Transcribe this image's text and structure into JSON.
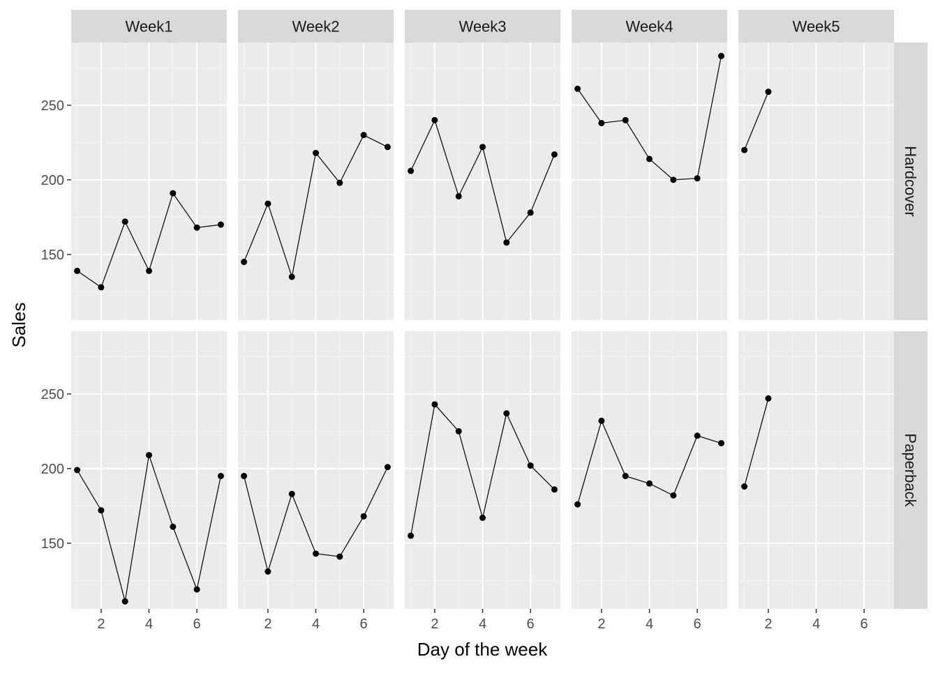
{
  "chart_data": {
    "type": "line",
    "xlabel": "Day of the week",
    "ylabel": "Sales",
    "xlim": [
      0.75,
      7.25
    ],
    "ylim": [
      106,
      292
    ],
    "x_ticks": [
      2,
      4,
      6
    ],
    "y_ticks": [
      150,
      200,
      250
    ],
    "column_facets": [
      "Week1",
      "Week2",
      "Week3",
      "Week4",
      "Week5"
    ],
    "row_facets": [
      "Hardcover",
      "Paperback"
    ],
    "panels": [
      {
        "row": "Hardcover",
        "col": "Week1",
        "x": [
          1,
          2,
          3,
          4,
          5,
          6,
          7
        ],
        "y": [
          139,
          128,
          172,
          139,
          191,
          168,
          170
        ]
      },
      {
        "row": "Hardcover",
        "col": "Week2",
        "x": [
          1,
          2,
          3,
          4,
          5,
          6,
          7
        ],
        "y": [
          145,
          184,
          135,
          218,
          198,
          230,
          222
        ]
      },
      {
        "row": "Hardcover",
        "col": "Week3",
        "x": [
          1,
          2,
          3,
          4,
          5,
          6,
          7
        ],
        "y": [
          206,
          240,
          189,
          222,
          158,
          178,
          217
        ]
      },
      {
        "row": "Hardcover",
        "col": "Week4",
        "x": [
          1,
          2,
          3,
          4,
          5,
          6,
          7
        ],
        "y": [
          261,
          238,
          240,
          214,
          200,
          201,
          283
        ]
      },
      {
        "row": "Hardcover",
        "col": "Week5",
        "x": [
          1,
          2
        ],
        "y": [
          220,
          259
        ]
      },
      {
        "row": "Paperback",
        "col": "Week1",
        "x": [
          1,
          2,
          3,
          4,
          5,
          6,
          7
        ],
        "y": [
          199,
          172,
          111,
          209,
          161,
          119,
          195
        ]
      },
      {
        "row": "Paperback",
        "col": "Week2",
        "x": [
          1,
          2,
          3,
          4,
          5,
          6,
          7
        ],
        "y": [
          195,
          131,
          183,
          143,
          141,
          168,
          201
        ]
      },
      {
        "row": "Paperback",
        "col": "Week3",
        "x": [
          1,
          2,
          3,
          4,
          5,
          6,
          7
        ],
        "y": [
          155,
          243,
          225,
          167,
          237,
          202,
          186
        ]
      },
      {
        "row": "Paperback",
        "col": "Week4",
        "x": [
          1,
          2,
          3,
          4,
          5,
          6,
          7
        ],
        "y": [
          176,
          232,
          195,
          190,
          182,
          222,
          217
        ]
      },
      {
        "row": "Paperback",
        "col": "Week5",
        "x": [
          1,
          2
        ],
        "y": [
          188,
          247
        ]
      }
    ],
    "colors": {
      "panel_background": "#ebebeb",
      "grid_major": "#ffffff",
      "grid_minor": "#f5f5f5",
      "strip_background": "#d9d9d9",
      "line": "#000000",
      "point": "#000000"
    },
    "grid": true,
    "legend": "none"
  }
}
